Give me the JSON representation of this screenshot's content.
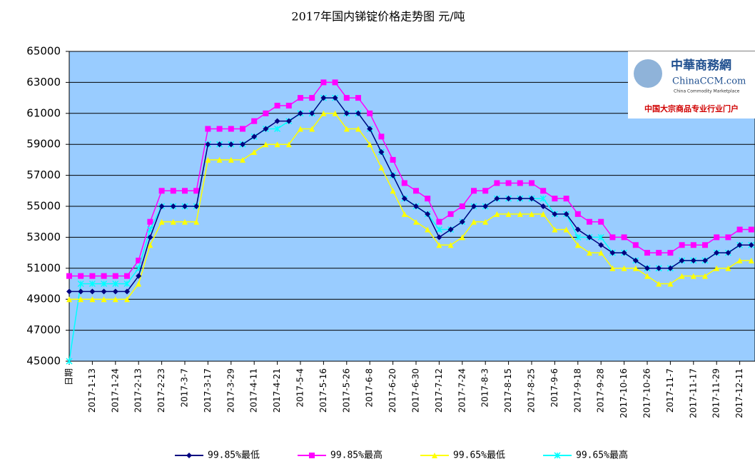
{
  "chart_data": {
    "type": "line",
    "title": "2017年国内锑锭价格走势图 元/吨",
    "categories": [
      "日期",
      null,
      "2017-1-13",
      null,
      "2017-1-24",
      null,
      "2017-2-13",
      null,
      "2017-2-23",
      null,
      "2017-3-7",
      null,
      "2017-3-17",
      null,
      "2017-3-29",
      null,
      "2017-4-11",
      null,
      "2017-4-21",
      null,
      "2017-5-4",
      null,
      "2017-5-16",
      null,
      "2017-5-26",
      null,
      "2017-6-8",
      null,
      "2017-6-20",
      null,
      "2017-6-30",
      null,
      "2017-7-12",
      null,
      "2017-7-24",
      null,
      "2017-8-3",
      null,
      "2017-8-15",
      null,
      "2017-8-25",
      null,
      "2017-9-6",
      null,
      "2017-9-18",
      null,
      "2017-9-28",
      null,
      "2017-10-16",
      null,
      "2017-10-26",
      null,
      "2017-11-7",
      null,
      "2017-11-17",
      null,
      "2017-11-29",
      null,
      "2017-12-11",
      null
    ],
    "series": [
      {
        "name": "99.85%最低",
        "color": "#000080",
        "marker": "diamond",
        "values": [
          49500,
          49500,
          49500,
          49500,
          49500,
          49500,
          50500,
          53000,
          55000,
          55000,
          55000,
          55000,
          59000,
          59000,
          59000,
          59000,
          59500,
          60000,
          60500,
          60500,
          61000,
          61000,
          62000,
          62000,
          61000,
          61000,
          60000,
          58500,
          57000,
          55500,
          55000,
          54500,
          53000,
          53500,
          54000,
          55000,
          55000,
          55500,
          55500,
          55500,
          55500,
          55000,
          54500,
          54500,
          53500,
          53000,
          52500,
          52000,
          52000,
          51500,
          51000,
          51000,
          51000,
          51500,
          51500,
          51500,
          52000,
          52000,
          52500,
          52500
        ]
      },
      {
        "name": "99.85%最高",
        "color": "#ff00ff",
        "marker": "square",
        "values": [
          50500,
          50500,
          50500,
          50500,
          50500,
          50500,
          51500,
          54000,
          56000,
          56000,
          56000,
          56000,
          60000,
          60000,
          60000,
          60000,
          60500,
          61000,
          61500,
          61500,
          62000,
          62000,
          63000,
          63000,
          62000,
          62000,
          61000,
          59500,
          58000,
          56500,
          56000,
          55500,
          54000,
          54500,
          55000,
          56000,
          56000,
          56500,
          56500,
          56500,
          56500,
          56000,
          55500,
          55500,
          54500,
          54000,
          54000,
          53000,
          53000,
          52500,
          52000,
          52000,
          52000,
          52500,
          52500,
          52500,
          53000,
          53000,
          53500,
          53500
        ]
      },
      {
        "name": "99.65%最低",
        "color": "#ffff00",
        "marker": "triangle",
        "values": [
          49000,
          49000,
          49000,
          49000,
          49000,
          49000,
          50000,
          52500,
          54000,
          54000,
          54000,
          54000,
          58000,
          58000,
          58000,
          58000,
          58500,
          59000,
          59000,
          59000,
          60000,
          60000,
          61000,
          61000,
          60000,
          60000,
          59000,
          57500,
          56000,
          54500,
          54000,
          53500,
          52500,
          52500,
          53000,
          54000,
          54000,
          54500,
          54500,
          54500,
          54500,
          54500,
          53500,
          53500,
          52500,
          52000,
          52000,
          51000,
          51000,
          51000,
          50500,
          50000,
          50000,
          50500,
          50500,
          50500,
          51000,
          51000,
          51500,
          51500
        ]
      },
      {
        "name": "99.65%最高",
        "color": "#00ffff",
        "marker": "x",
        "values": [
          45000,
          50000,
          50000,
          50000,
          50000,
          50000,
          51000,
          53500,
          55000,
          55000,
          55000,
          55000,
          59000,
          59000,
          59000,
          59000,
          59500,
          60000,
          60000,
          60500,
          61000,
          61000,
          62000,
          62000,
          61000,
          61000,
          60000,
          58500,
          57000,
          55500,
          55000,
          54500,
          53500,
          53500,
          54000,
          55000,
          55000,
          55500,
          55500,
          55500,
          55500,
          55500,
          54500,
          54500,
          53000,
          53000,
          53000,
          52000,
          52000,
          51500,
          51000,
          51000,
          51000,
          51500,
          51500,
          51500,
          52000,
          52000,
          52500,
          52500
        ]
      }
    ],
    "ylim": [
      45000,
      65000
    ],
    "yticks": [
      45000,
      47000,
      49000,
      51000,
      53000,
      55000,
      57000,
      59000,
      61000,
      63000,
      65000
    ],
    "grid": true,
    "background": "#99ccff",
    "legend": "bottom"
  },
  "logo": {
    "name": "中華商務網",
    "site": "ChinaCCM.com",
    "tagline": "China Commodity Marketplace",
    "slogan": "中国大宗商品专业行业门户"
  }
}
